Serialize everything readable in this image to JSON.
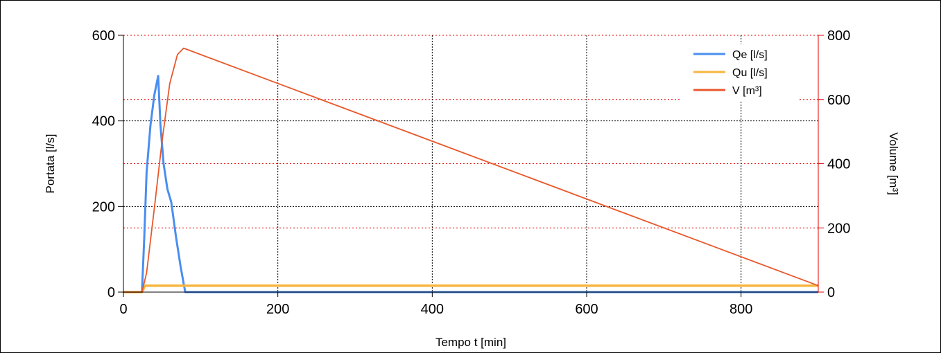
{
  "chart_data": {
    "type": "line",
    "xlabel": "Tempo t [min]",
    "ylabel_left": "Portata [l/s]",
    "ylabel_right": "Volume [m³]",
    "xlim": [
      0,
      900
    ],
    "ylim_left": [
      0,
      600
    ],
    "ylim_right": [
      0,
      800
    ],
    "x_ticks": [
      "0",
      "200",
      "400",
      "600",
      "800"
    ],
    "y_left_ticks": [
      "0",
      "200",
      "400",
      "600"
    ],
    "y_right_ticks": [
      "0",
      "200",
      "400",
      "600",
      "800"
    ],
    "grid_x": "black dotted",
    "grid_y_left": "black dotted",
    "grid_y_right": "red dotted",
    "legend_position": "top-right",
    "series": [
      {
        "name": "Qe [l/s]",
        "axis": "left",
        "color": "#4a8ef0",
        "x": [
          0,
          24,
          27,
          30,
          35,
          40,
          45,
          48,
          52,
          57,
          62,
          68,
          74,
          80,
          900
        ],
        "y": [
          0,
          0,
          130,
          280,
          390,
          460,
          505,
          390,
          300,
          240,
          210,
          130,
          60,
          0,
          0
        ]
      },
      {
        "name": "Qu [l/s]",
        "axis": "left",
        "color": "#f7b53d",
        "x": [
          0,
          24,
          28,
          900
        ],
        "y": [
          0,
          0,
          15,
          15
        ]
      },
      {
        "name": "V [m³]",
        "axis": "right",
        "color": "#e8582c",
        "x": [
          0,
          24,
          30,
          40,
          50,
          60,
          70,
          78,
          900
        ],
        "y": [
          0,
          0,
          60,
          260,
          470,
          650,
          740,
          760,
          20
        ]
      }
    ]
  },
  "colors": {
    "left_axis": "#000000",
    "right_axis": "#e60000",
    "grid_black": "#000000",
    "grid_red": "#e60000"
  }
}
